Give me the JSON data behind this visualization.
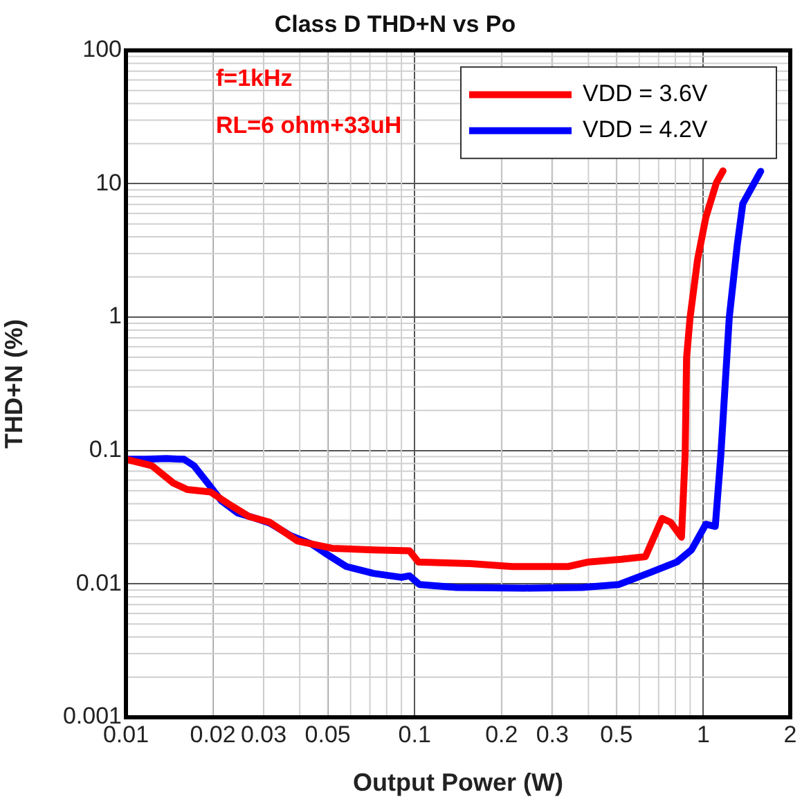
{
  "chart_data": {
    "type": "line",
    "title": "Class D THD+N vs Po",
    "xlabel": "Output Power (W)",
    "ylabel": "THD+N (%)",
    "log": "xy",
    "grid": true,
    "legend": "top right",
    "marker": "none",
    "line_style": "solid",
    "xlim": [
      0.01,
      2
    ],
    "xticks": [
      0.01,
      0.02,
      0.03,
      0.05,
      0.1,
      0.2,
      0.3,
      0.5,
      1,
      2
    ],
    "ylim": [
      0.001,
      100
    ],
    "yticks": [
      0.001,
      0.01,
      0.1,
      1,
      10,
      100
    ],
    "annotations": [
      "f=1kHz",
      "RL=6 ohm+33uH"
    ],
    "series": [
      {
        "name": "VDD = 3.6V",
        "color": "#ff0000",
        "x": [
          0.01,
          0.0123,
          0.0146,
          0.0163,
          0.0196,
          0.0226,
          0.0267,
          0.0315,
          0.0393,
          0.0518,
          0.072,
          0.096,
          0.103,
          0.156,
          0.218,
          0.34,
          0.4,
          0.52,
          0.63,
          0.72,
          0.77,
          0.84,
          0.865,
          0.875,
          0.9,
          0.955,
          1.02,
          1.11,
          1.17
        ],
        "values": [
          0.086,
          0.077,
          0.057,
          0.051,
          0.049,
          0.04,
          0.032,
          0.029,
          0.021,
          0.0185,
          0.018,
          0.0177,
          0.0146,
          0.0142,
          0.0135,
          0.0135,
          0.0146,
          0.0153,
          0.016,
          0.031,
          0.029,
          0.0224,
          0.093,
          0.5,
          1.0,
          2.7,
          5.6,
          10.2,
          12.5
        ]
      },
      {
        "name": "VDD = 4.2V",
        "color": "#0000ff",
        "x": [
          0.01,
          0.0117,
          0.0138,
          0.0159,
          0.0172,
          0.0192,
          0.0214,
          0.0244,
          0.0282,
          0.0315,
          0.0372,
          0.044,
          0.049,
          0.058,
          0.072,
          0.09,
          0.096,
          0.104,
          0.14,
          0.24,
          0.38,
          0.51,
          0.65,
          0.81,
          0.91,
          1.02,
          1.1,
          1.15,
          1.23,
          1.31,
          1.37,
          1.58
        ],
        "values": [
          0.086,
          0.086,
          0.087,
          0.086,
          0.077,
          0.057,
          0.042,
          0.034,
          0.031,
          0.0286,
          0.023,
          0.0199,
          0.017,
          0.0135,
          0.012,
          0.0112,
          0.0115,
          0.0099,
          0.0094,
          0.0093,
          0.0094,
          0.0099,
          0.0121,
          0.0146,
          0.018,
          0.028,
          0.027,
          0.093,
          1.0,
          3.45,
          7.1,
          12.4
        ]
      }
    ]
  }
}
